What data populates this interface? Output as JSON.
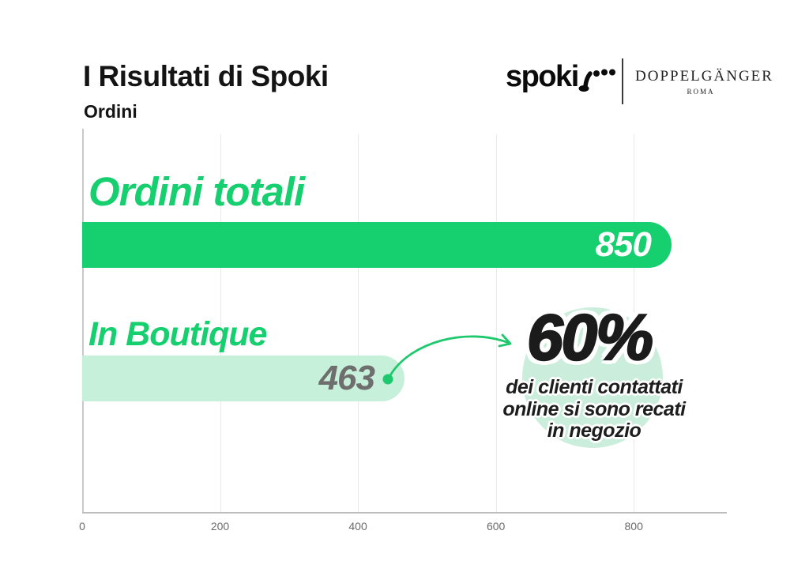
{
  "header": {
    "title": "I Risultati di Spoki",
    "subtitle": "Ordini"
  },
  "logos": {
    "spoki_wordmark": "spoki",
    "spoki_icon": "tap-gesture-dots-icon",
    "partner_name": "DOPPELGÄNGER",
    "partner_city": "ROMA"
  },
  "chart_data": {
    "type": "bar",
    "orientation": "horizontal",
    "title": "Ordini",
    "categories": [
      "Ordini totali",
      "In Boutique"
    ],
    "values": [
      850,
      463
    ],
    "value_labels": [
      "850",
      "463"
    ],
    "x_ticks": [
      "0",
      "200",
      "400",
      "600",
      "800"
    ],
    "xlim": [
      0,
      935
    ],
    "grid": true,
    "legend": false,
    "bar_colors": [
      "#16cf6e",
      "#c6f0d9"
    ],
    "value_label_colors": [
      "#ffffff",
      "#6e6e6e"
    ],
    "category_label_color": "#16cf6e"
  },
  "annotation": {
    "headline": "60%",
    "line1": "dei clienti contattati",
    "line2": "online si sono recati",
    "line3": "in negozio",
    "arrow_color": "#1ec96d",
    "circle_color": "#cbeedc"
  },
  "colors": {
    "green": "#16cf6e",
    "light_green": "#c6f0d9",
    "grid": "#e9e9e9",
    "axis": "#bdbdbd",
    "tick_text": "#6a6a6a",
    "ink": "#1b1b1b"
  }
}
